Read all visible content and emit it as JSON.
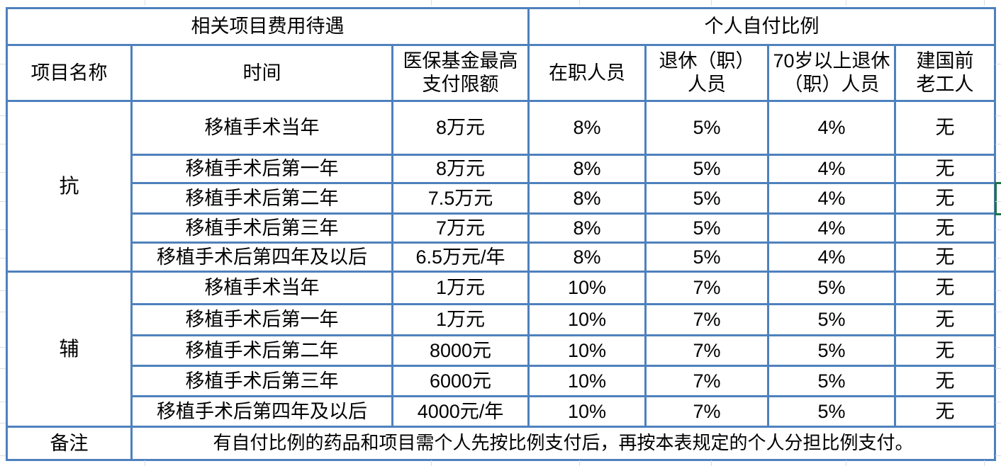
{
  "colors": {
    "table_border_blue": "#4e81bd",
    "active_cell_green": "#1f7346",
    "sheet_gridline": "#d7dee8",
    "text": "#000000",
    "background": "#ffffff"
  },
  "table": {
    "group_headers": [
      {
        "label": "相关项目费用待遇"
      },
      {
        "label": "个人自付比例"
      }
    ],
    "column_headers": [
      "项目名称",
      "时间",
      "医保基金最高\n支付限额",
      "在职人员",
      "退休（职）\n人员",
      "70岁以上退休\n（职）人员",
      "建国前\n老工人"
    ],
    "sections": [
      {
        "name": "抗",
        "rows": [
          {
            "time": "移植手术当年",
            "limit": "8万元",
            "active": "8%",
            "retired": "5%",
            "over70": "4%",
            "pre1949": "无"
          },
          {
            "time": "移植手术后第一年",
            "limit": "8万元",
            "active": "8%",
            "retired": "5%",
            "over70": "4%",
            "pre1949": "无"
          },
          {
            "time": "移植手术后第二年",
            "limit": "7.5万元",
            "active": "8%",
            "retired": "5%",
            "over70": "4%",
            "pre1949": "无"
          },
          {
            "time": "移植手术后第三年",
            "limit": "7万元",
            "active": "8%",
            "retired": "5%",
            "over70": "4%",
            "pre1949": "无"
          },
          {
            "time": "移植手术后第四年及以后",
            "limit": "6.5万元/年",
            "active": "8%",
            "retired": "5%",
            "over70": "4%",
            "pre1949": "无"
          }
        ]
      },
      {
        "name": "辅",
        "rows": [
          {
            "time": "移植手术当年",
            "limit": "1万元",
            "active": "10%",
            "retired": "7%",
            "over70": "5%",
            "pre1949": "无"
          },
          {
            "time": "移植手术后第一年",
            "limit": "1万元",
            "active": "10%",
            "retired": "7%",
            "over70": "5%",
            "pre1949": "无"
          },
          {
            "time": "移植手术后第二年",
            "limit": "8000元",
            "active": "10%",
            "retired": "7%",
            "over70": "5%",
            "pre1949": "无"
          },
          {
            "time": "移植手术后第三年",
            "limit": "6000元",
            "active": "10%",
            "retired": "7%",
            "over70": "5%",
            "pre1949": "无"
          },
          {
            "time": "移植手术后第四年及以后",
            "limit": "4000元/年",
            "active": "10%",
            "retired": "7%",
            "over70": "5%",
            "pre1949": "无"
          }
        ]
      }
    ],
    "note": {
      "label": "备注",
      "text": "有自付比例的药品和项目需个人先按比例支付后，再按本表规定的个人分担比例支付。"
    }
  }
}
